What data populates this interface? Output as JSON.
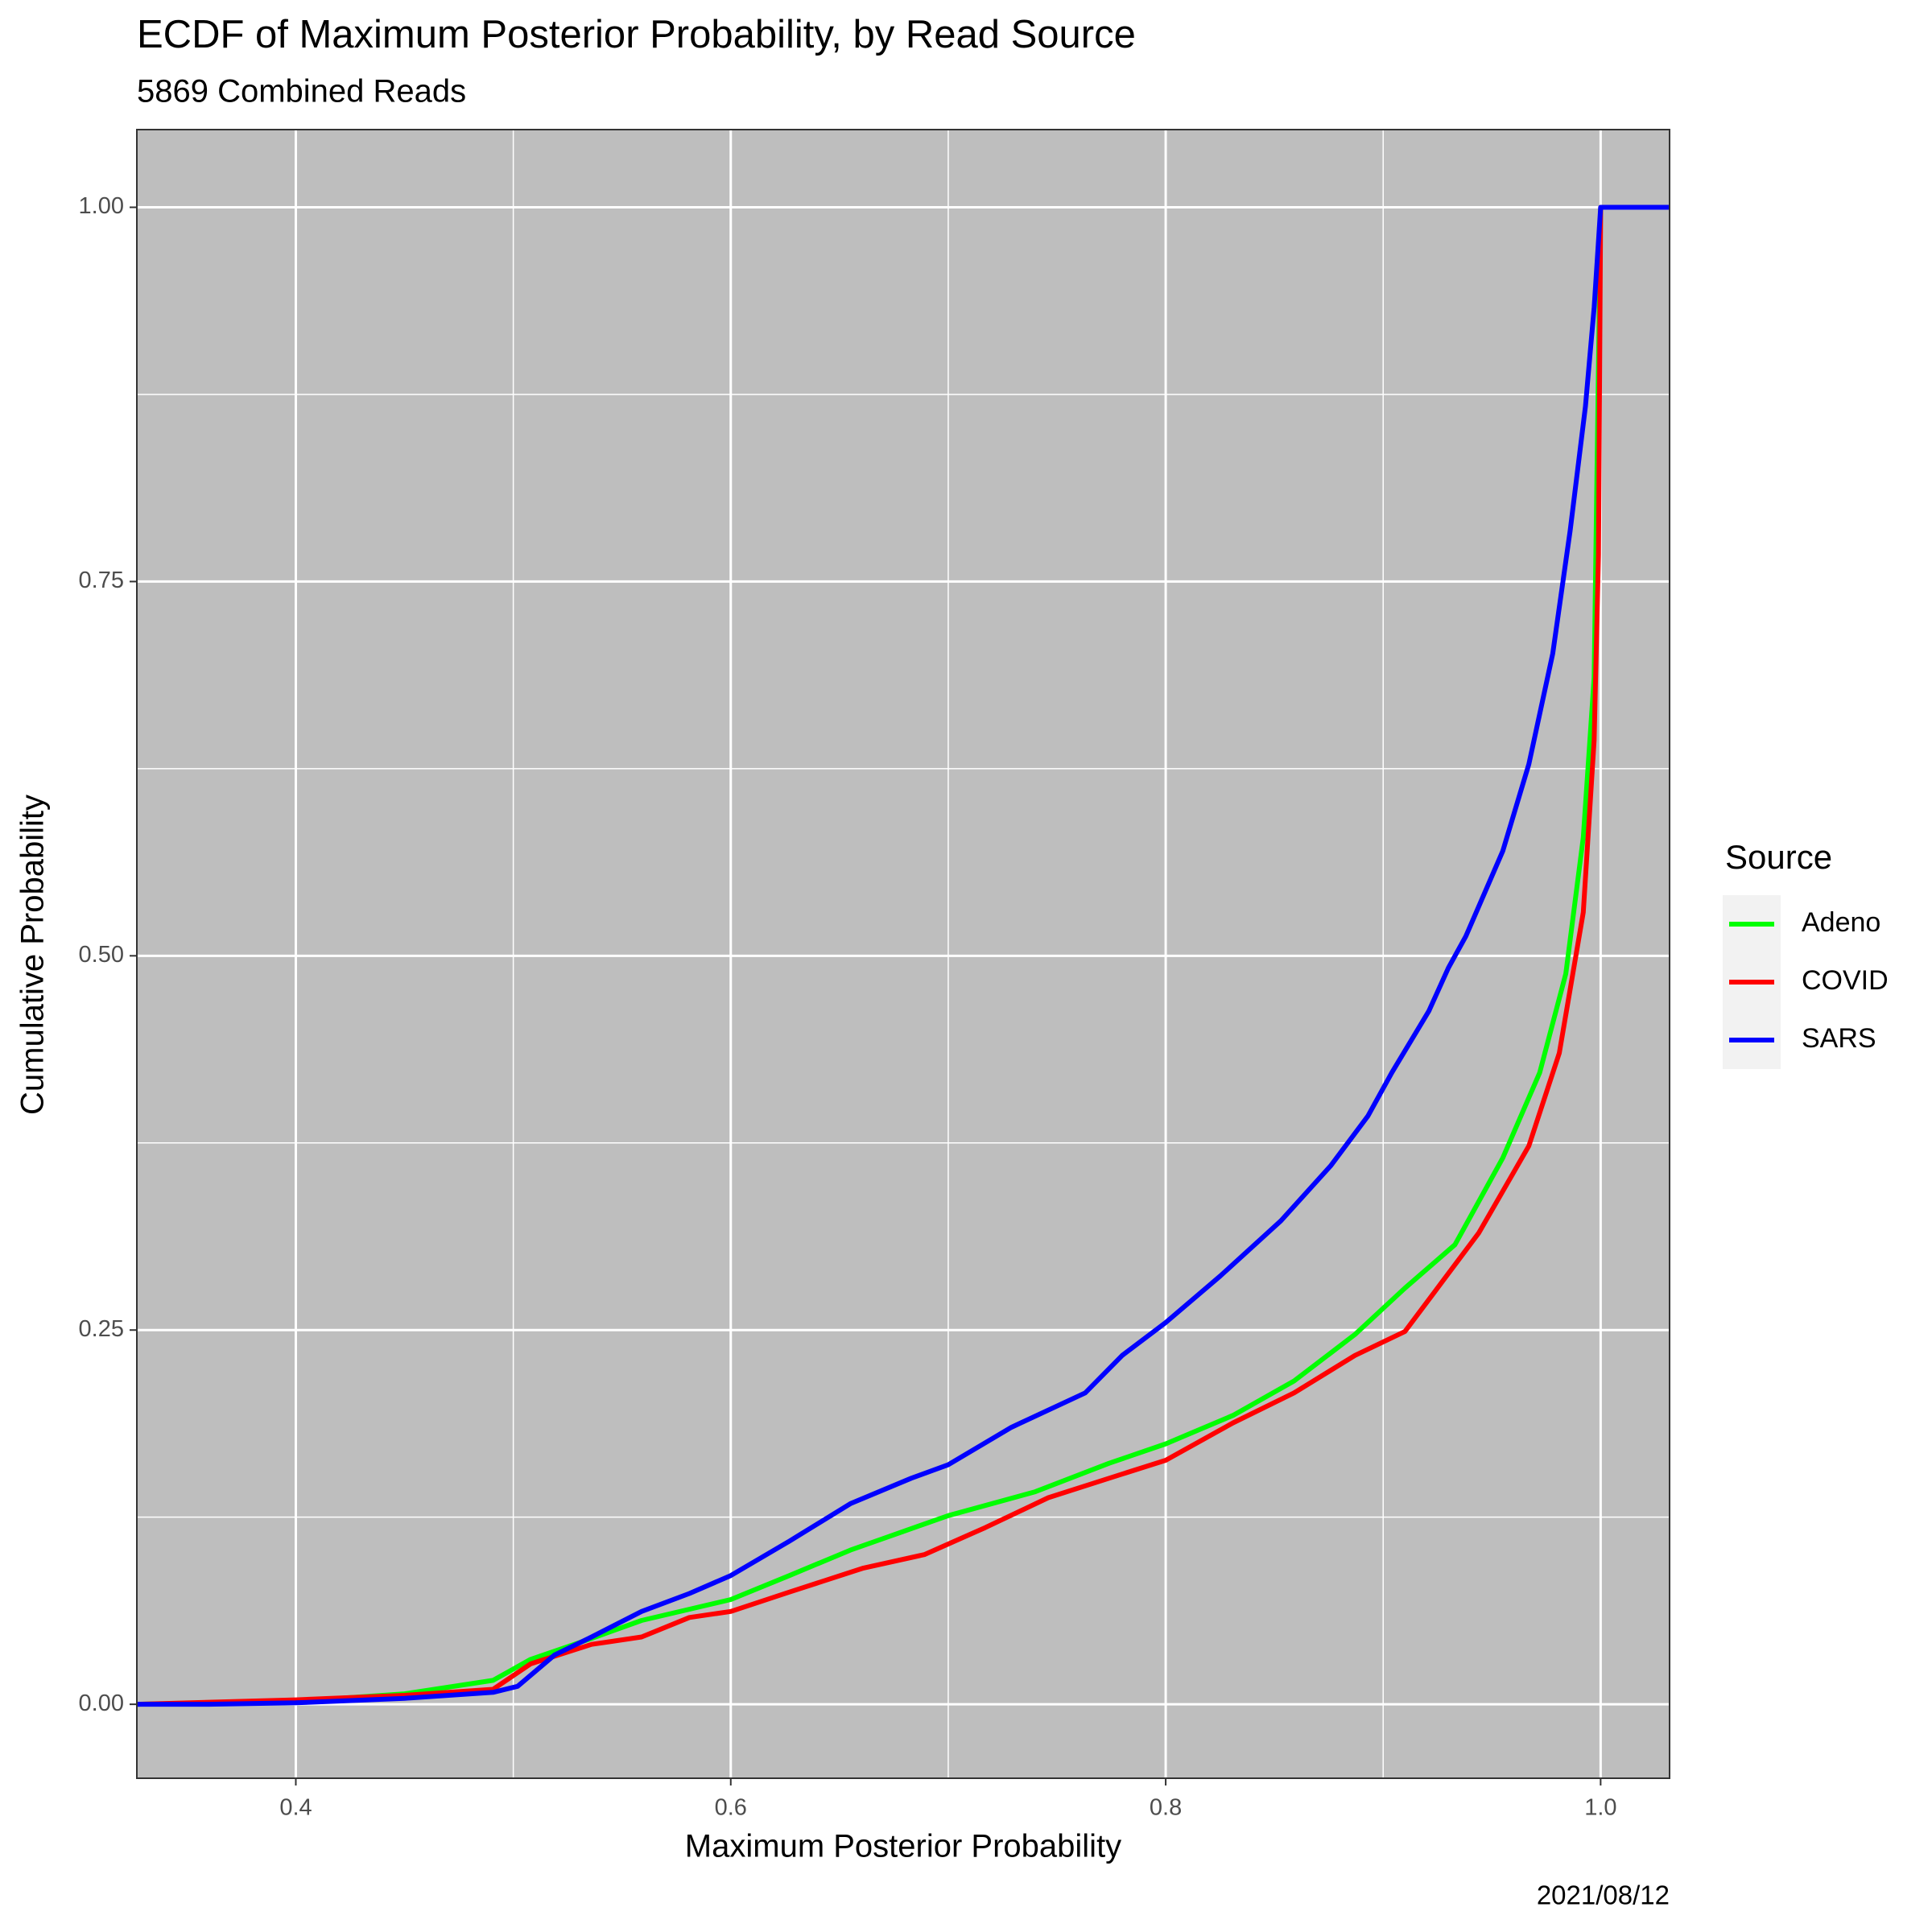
{
  "chart_data": {
    "type": "line",
    "title": "ECDF of Maximum Posterior Probability, by Read Source",
    "subtitle": "5869 Combined Reads",
    "x_label": "Maximum Posterior Probability",
    "y_label": "Cumulative Probability",
    "caption": "2021/08/12",
    "legend_title": "Source",
    "legend_position": "right",
    "grid": true,
    "panel_color": "#bebebe",
    "xlim": [
      0.3269,
      1.0317
    ],
    "ylim": [
      -0.0494,
      1.0519
    ],
    "xticks": [
      0.4,
      0.6,
      0.8,
      {
        "value": 1.0,
        "label": "1.0"
      }
    ],
    "yticks": [
      {
        "value": 0,
        "label": "0.00"
      },
      {
        "value": 0.25,
        "label": "0.25"
      },
      {
        "value": 0.5,
        "label": "0.50"
      },
      {
        "value": 0.75,
        "label": "0.75"
      },
      {
        "value": 1.0,
        "label": "1.00"
      }
    ],
    "series": [
      {
        "name": "Adeno",
        "color": "#00ff00",
        "x": [
          0.3269,
          0.4,
          0.45,
          0.4907,
          0.508,
          0.536,
          0.559,
          0.6,
          0.627,
          0.655,
          0.7,
          0.74,
          0.774,
          0.8,
          0.831,
          0.859,
          0.887,
          0.91,
          0.933,
          0.955,
          0.972,
          0.984,
          0.992,
          0.997,
          1.0,
          1.0317
        ],
        "values": [
          0,
          0.002,
          0.007,
          0.016,
          0.03,
          0.044,
          0.056,
          0.07,
          0.086,
          0.103,
          0.126,
          0.142,
          0.161,
          0.174,
          0.193,
          0.216,
          0.247,
          0.278,
          0.307,
          0.365,
          0.422,
          0.488,
          0.579,
          0.686,
          1.0,
          1.0
        ]
      },
      {
        "name": "COVID",
        "color": "#ff0000",
        "x": [
          0.3269,
          0.4,
          0.45,
          0.4907,
          0.508,
          0.536,
          0.559,
          0.581,
          0.6,
          0.627,
          0.661,
          0.689,
          0.717,
          0.746,
          0.774,
          0.8,
          0.831,
          0.859,
          0.887,
          0.91,
          0.927,
          0.944,
          0.967,
          0.981,
          0.992,
          0.997,
          0.999,
          1.0,
          1.0317
        ],
        "values": [
          0,
          0.003,
          0.006,
          0.01,
          0.027,
          0.04,
          0.045,
          0.058,
          0.062,
          0.075,
          0.091,
          0.1,
          0.118,
          0.138,
          0.151,
          0.163,
          0.188,
          0.208,
          0.233,
          0.249,
          0.282,
          0.315,
          0.373,
          0.435,
          0.529,
          0.644,
          0.768,
          1.0,
          1.0
        ]
      },
      {
        "name": "SARS",
        "color": "#0000ff",
        "x": [
          0.3269,
          0.36,
          0.4,
          0.45,
          0.4907,
          0.502,
          0.519,
          0.536,
          0.559,
          0.581,
          0.6,
          0.627,
          0.655,
          0.683,
          0.7,
          0.729,
          0.763,
          0.78,
          0.8,
          0.825,
          0.853,
          0.876,
          0.893,
          0.904,
          0.921,
          0.93,
          0.938,
          0.955,
          0.967,
          0.978,
          0.986,
          0.993,
          0.997,
          1.0,
          1.0317
        ],
        "values": [
          0,
          0,
          0.001,
          0.004,
          0.008,
          0.012,
          0.033,
          0.045,
          0.062,
          0.074,
          0.086,
          0.109,
          0.134,
          0.151,
          0.16,
          0.185,
          0.208,
          0.233,
          0.255,
          0.286,
          0.323,
          0.36,
          0.393,
          0.422,
          0.463,
          0.492,
          0.513,
          0.57,
          0.628,
          0.702,
          0.784,
          0.867,
          0.933,
          1.0,
          1.0
        ]
      }
    ]
  }
}
